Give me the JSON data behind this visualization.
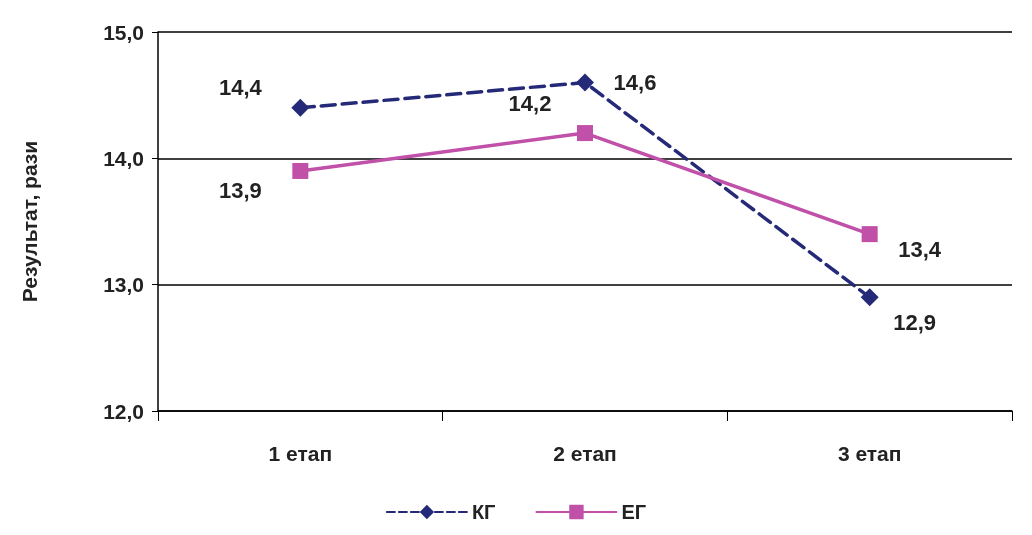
{
  "chart_data": {
    "type": "line",
    "ylabel": "Результат, рази",
    "categories": [
      "1 етап",
      "2 етап",
      "3 етап"
    ],
    "series": [
      {
        "name": "КГ",
        "color": "#252a78",
        "values": [
          14.4,
          14.6,
          12.9
        ],
        "value_labels": [
          "14,4",
          "14,6",
          "12,9"
        ],
        "marker": "diamond",
        "line_style": "dashed"
      },
      {
        "name": "ЕГ",
        "color": "#c050a8",
        "values": [
          13.9,
          14.2,
          13.4
        ],
        "value_labels": [
          "13,9",
          "14,2",
          "13,4"
        ],
        "marker": "square",
        "line_style": "solid"
      }
    ],
    "ylim": [
      12,
      15
    ],
    "yticks": [
      {
        "value": 12,
        "label": "12,0"
      },
      {
        "value": 13,
        "label": "13,0"
      },
      {
        "value": 14,
        "label": "14,0"
      },
      {
        "value": 15,
        "label": "15,0"
      }
    ],
    "grid": "y",
    "legend": "bottom"
  }
}
